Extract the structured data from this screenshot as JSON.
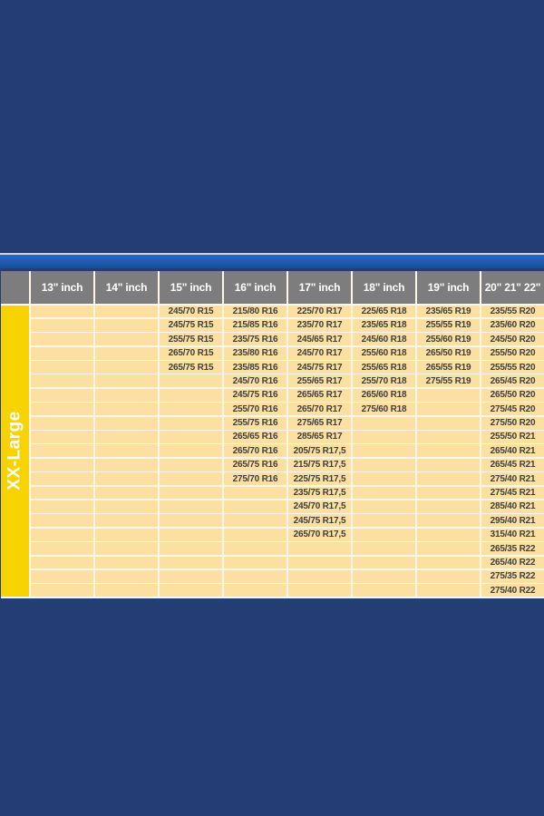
{
  "colors": {
    "background": "#243d72",
    "accent_bar": "#1f5aae",
    "separator_line": "#ccd5e2",
    "header_bg": "#7d7d7d",
    "header_text": "#ffffff",
    "cell_bg": "#fbe0a1",
    "cell_text": "#3e3e3e",
    "group_label_bg": "#f7d303",
    "grid_line": "#fcf7e8"
  },
  "chart_data": {
    "type": "table",
    "title": "Tire size fitment chart - XX-Large",
    "row_group_label": "XX-Large",
    "num_rows": 21,
    "legend_position": "left",
    "columns": [
      {
        "label": "13\" inch",
        "values": []
      },
      {
        "label": "14\" inch",
        "values": []
      },
      {
        "label": "15\" inch",
        "values": [
          "245/70 R15",
          "245/75 R15",
          "255/75 R15",
          "265/70 R15",
          "265/75 R15"
        ]
      },
      {
        "label": "16\" inch",
        "values": [
          "215/80 R16",
          "215/85 R16",
          "235/75 R16",
          "235/80 R16",
          "235/85 R16",
          "245/70 R16",
          "245/75 R16",
          "255/70 R16",
          "255/75 R16",
          "265/65 R16",
          "265/70 R16",
          "265/75 R16",
          "275/70 R16"
        ]
      },
      {
        "label": "17\" inch",
        "values": [
          "225/70 R17",
          "235/70 R17",
          "245/65 R17",
          "245/70 R17",
          "245/75 R17",
          "255/65 R17",
          "265/65 R17",
          "265/70 R17",
          "275/65 R17",
          "285/65 R17",
          "205/75 R17,5",
          "215/75 R17,5",
          "225/75 R17,5",
          "235/75 R17,5",
          "245/70 R17,5",
          "245/75 R17,5",
          "265/70 R17,5"
        ]
      },
      {
        "label": "18\" inch",
        "values": [
          "225/65 R18",
          "235/65 R18",
          "245/60 R18",
          "255/60 R18",
          "255/65 R18",
          "255/70 R18",
          "265/60 R18",
          "275/60 R18"
        ]
      },
      {
        "label": "19\" inch",
        "values": [
          "235/65 R19",
          "255/55 R19",
          "255/60 R19",
          "265/50 R19",
          "265/55 R19",
          "275/55 R19"
        ]
      },
      {
        "label": "20\" 21\" 22\"",
        "values": [
          "235/55 R20",
          "235/60 R20",
          "245/50 R20",
          "255/50 R20",
          "255/55 R20",
          "265/45 R20",
          "265/50 R20",
          "275/45 R20",
          "275/50 R20",
          "255/50 R21",
          "265/40 R21",
          "265/45 R21",
          "275/40 R21",
          "275/45 R21",
          "285/40 R21",
          "295/40 R21",
          "315/40 R21",
          "265/35 R22",
          "265/40 R22",
          "275/35 R22",
          "275/40 R22"
        ]
      }
    ]
  }
}
